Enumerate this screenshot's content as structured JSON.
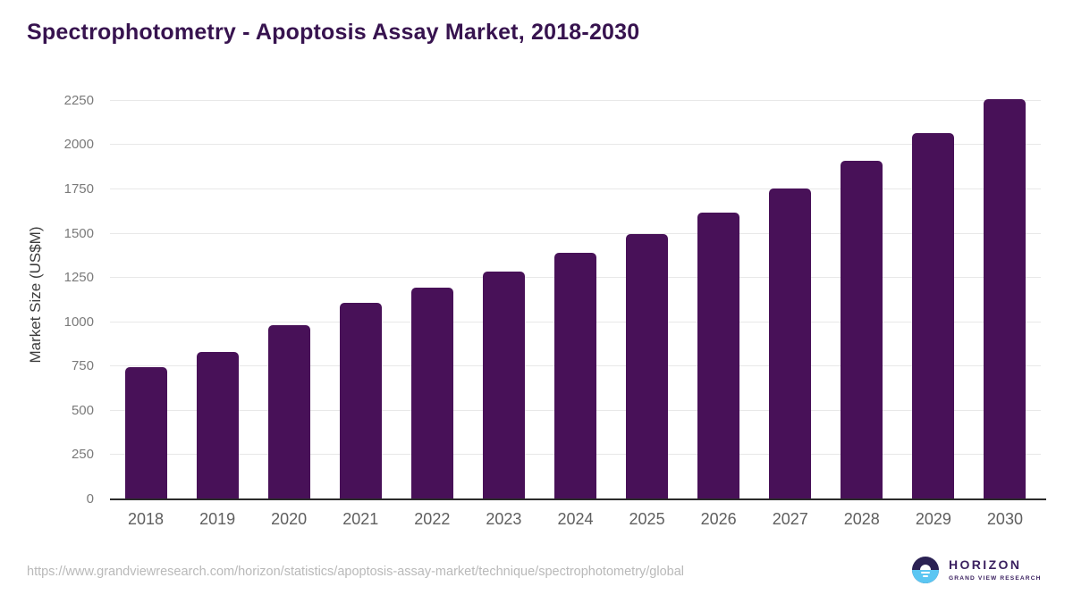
{
  "chart_data": {
    "type": "bar",
    "title": "Spectrophotometry - Apoptosis Assay Market, 2018-2030",
    "xlabel": "",
    "ylabel": "Market Size (US$M)",
    "categories": [
      "2018",
      "2019",
      "2020",
      "2021",
      "2022",
      "2023",
      "2024",
      "2025",
      "2026",
      "2027",
      "2028",
      "2029",
      "2030"
    ],
    "values": [
      745,
      830,
      985,
      1110,
      1195,
      1285,
      1390,
      1500,
      1620,
      1755,
      1910,
      2070,
      2260
    ],
    "yticks": [
      0,
      250,
      500,
      750,
      1000,
      1250,
      1500,
      1750,
      2000,
      2250
    ],
    "ylim": [
      0,
      2315
    ],
    "grid": true,
    "legend_position": "none",
    "unit": "US$M"
  },
  "footer": {
    "source_url": "https://www.grandviewresearch.com/horizon/statistics/apoptosis-assay-market/technique/spectrophotometry/global",
    "logo": {
      "title": "HORIZON",
      "subtitle": "GRAND VIEW RESEARCH"
    }
  },
  "colors": {
    "title": "#37134f",
    "bar": "#481158",
    "gridline": "#e8e8e8",
    "axis_line": "#2b2b2b",
    "y_tick": "#7a7a7a",
    "x_tick": "#5f5f5f",
    "axis_title": "#3c3c3c",
    "url": "#b9b9b9",
    "logo_dark": "#2a2153",
    "logo_blue": "#5bc6f2",
    "logo_text": "#3b2160"
  }
}
